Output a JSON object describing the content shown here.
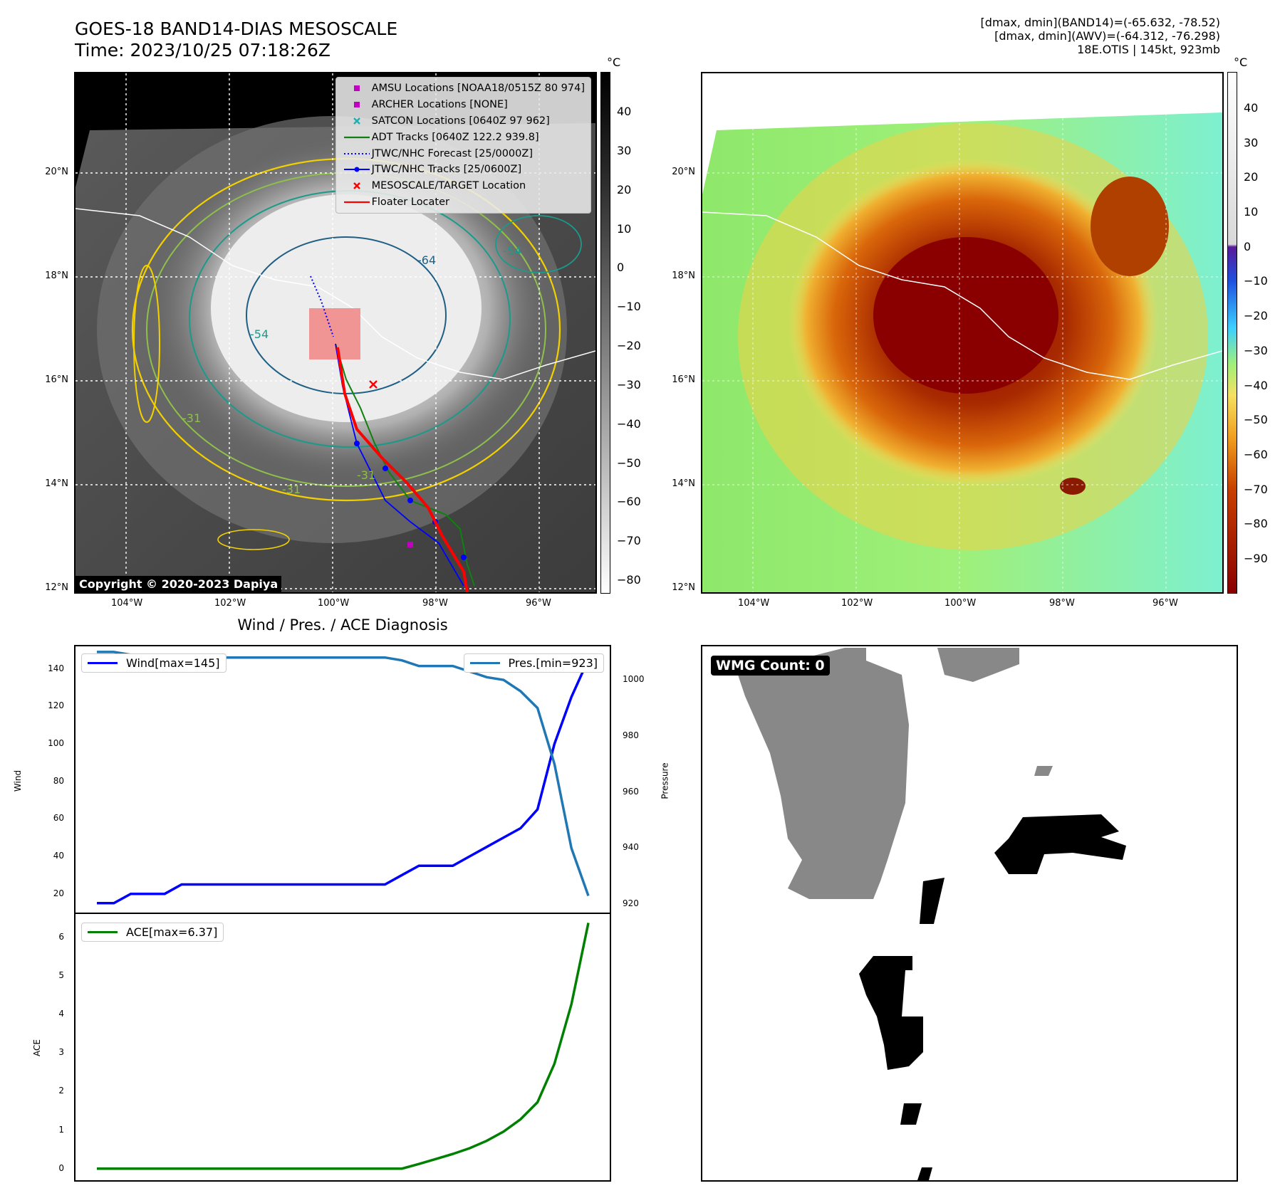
{
  "header": {
    "title_line1": "GOES-18 BAND14-DIAS MESOSCALE",
    "title_line2": "Time: 2023/10/25 07:18:26Z",
    "info_line1": "[dmax, dmin](BAND14)=(-65.632, -78.52)",
    "info_line2": "[dmax, dmin](AWV)=(-64.312, -76.298)",
    "info_line3": "18E.OTIS | 145kt, 923mb"
  },
  "map": {
    "lat_labels": [
      "20°N",
      "18°N",
      "16°N",
      "14°N",
      "12°N"
    ],
    "lon_labels": [
      "104°W",
      "102°W",
      "100°W",
      "98°W",
      "96°W"
    ],
    "contour_labels": [
      "-64",
      "-54",
      "-54",
      "-31",
      "-31",
      "-31"
    ],
    "copyright": "Copyright © 2020-2023 Dapiya",
    "legend": [
      {
        "label": "AMSU Locations [NOAA18/0515Z 80 974]",
        "color": "#c000c0",
        "symbol": "square-icon"
      },
      {
        "label": "ARCHER Locations [NONE]",
        "color": "#c000c0",
        "symbol": "square-icon"
      },
      {
        "label": "SATCON Locations [0640Z 97 962]",
        "color": "#20b0b0",
        "symbol": "x-icon"
      },
      {
        "label": "ADT Tracks [0640Z 122.2 939.8]",
        "color": "#108010",
        "symbol": "line-icon"
      },
      {
        "label": "JTWC/NHC Forecast [25/0000Z]",
        "color": "#0000ff",
        "symbol": "dotted-line-icon"
      },
      {
        "label": "JTWC/NHC Tracks [25/0600Z]",
        "color": "#0000ff",
        "symbol": "line-dot-icon"
      },
      {
        "label": "MESOSCALE/TARGET Location",
        "color": "#ff0000",
        "symbol": "x-icon"
      },
      {
        "label": "Floater Locater",
        "color": "#ff0000",
        "symbol": "line-icon"
      }
    ],
    "left_colorbar": {
      "unit": "°C",
      "ticks": [
        "40",
        "30",
        "20",
        "10",
        "0",
        "−10",
        "−20",
        "−30",
        "−40",
        "−50",
        "−60",
        "−70",
        "−80"
      ]
    },
    "right_colorbar": {
      "unit": "°C",
      "ticks": [
        "40",
        "30",
        "20",
        "10",
        "0",
        "−10",
        "−20",
        "−30",
        "−40",
        "−50",
        "−60",
        "−70",
        "−80",
        "−90"
      ]
    }
  },
  "diagnosis": {
    "title": "Wind / Pres. / ACE Diagnosis",
    "wind_legend": "Wind[max=145]",
    "pres_legend": "Pres.[min=923]",
    "ace_legend": "ACE[max=6.37]",
    "wind_axis_label": "Wind",
    "pres_axis_label": "Pressure",
    "ace_axis_label": "ACE",
    "wind_ticks": [
      "140",
      "120",
      "100",
      "80",
      "60",
      "40",
      "20"
    ],
    "pres_ticks": [
      "1000",
      "980",
      "960",
      "940",
      "920"
    ],
    "ace_ticks": [
      "6",
      "5",
      "4",
      "3",
      "2",
      "1",
      "0"
    ]
  },
  "wmg": {
    "label": "WMG Count: 0"
  },
  "colors": {
    "wind": "#0000ff",
    "pressure": "#1f77b4",
    "ace": "#008000",
    "floater": "#ff0000"
  },
  "chart_data": [
    {
      "type": "line",
      "title": "Wind / Pres. / ACE Diagnosis",
      "ylabel": "Wind",
      "ylim": [
        10,
        152
      ],
      "series": [
        {
          "name": "Wind[max=145]",
          "axis": "left",
          "values": [
            15,
            15,
            20,
            20,
            20,
            25,
            25,
            25,
            25,
            25,
            25,
            25,
            25,
            25,
            25,
            25,
            25,
            25,
            30,
            35,
            35,
            35,
            40,
            45,
            50,
            55,
            65,
            100,
            125,
            145
          ]
        },
        {
          "name": "Pres.[min=923]",
          "axis": "right",
          "ylabel": "Pressure",
          "ylim": [
            917,
            1012
          ],
          "values": [
            1010,
            1010,
            1009,
            1009,
            1009,
            1008,
            1008,
            1008,
            1008,
            1008,
            1008,
            1008,
            1008,
            1008,
            1008,
            1008,
            1008,
            1008,
            1007,
            1005,
            1005,
            1005,
            1003,
            1001,
            1000,
            996,
            990,
            970,
            940,
            923
          ]
        }
      ]
    },
    {
      "type": "line",
      "ylabel": "ACE",
      "ylim": [
        -0.3,
        6.6
      ],
      "series": [
        {
          "name": "ACE[max=6.37]",
          "values": [
            0,
            0,
            0,
            0,
            0,
            0,
            0,
            0,
            0,
            0,
            0,
            0,
            0,
            0,
            0,
            0,
            0,
            0,
            0,
            0.12,
            0.25,
            0.38,
            0.53,
            0.72,
            0.96,
            1.28,
            1.72,
            2.72,
            4.26,
            6.37
          ]
        }
      ]
    }
  ]
}
